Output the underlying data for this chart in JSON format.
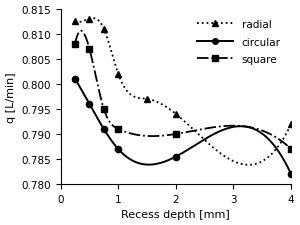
{
  "radial_x": [
    0.25,
    0.5,
    0.75,
    1.0,
    1.5,
    2.0,
    4.0
  ],
  "radial_y": [
    0.8125,
    0.813,
    0.811,
    0.802,
    0.797,
    0.794,
    0.792
  ],
  "circular_x": [
    0.25,
    0.5,
    0.75,
    1.0,
    2.0,
    4.0
  ],
  "circular_y": [
    0.801,
    0.796,
    0.791,
    0.787,
    0.7855,
    0.782
  ],
  "square_x": [
    0.25,
    0.5,
    0.75,
    1.0,
    2.0,
    4.0
  ],
  "square_y": [
    0.808,
    0.807,
    0.795,
    0.791,
    0.79,
    0.787
  ],
  "xlabel": "Recess depth [mm]",
  "ylabel": "q [L/min]",
  "xlim": [
    0,
    4
  ],
  "ylim": [
    0.78,
    0.815
  ],
  "yticks": [
    0.78,
    0.785,
    0.79,
    0.795,
    0.8,
    0.805,
    0.81,
    0.815
  ],
  "xticks": [
    0,
    1,
    2,
    3,
    4
  ],
  "legend_labels": [
    "radial",
    "circular",
    "square"
  ]
}
